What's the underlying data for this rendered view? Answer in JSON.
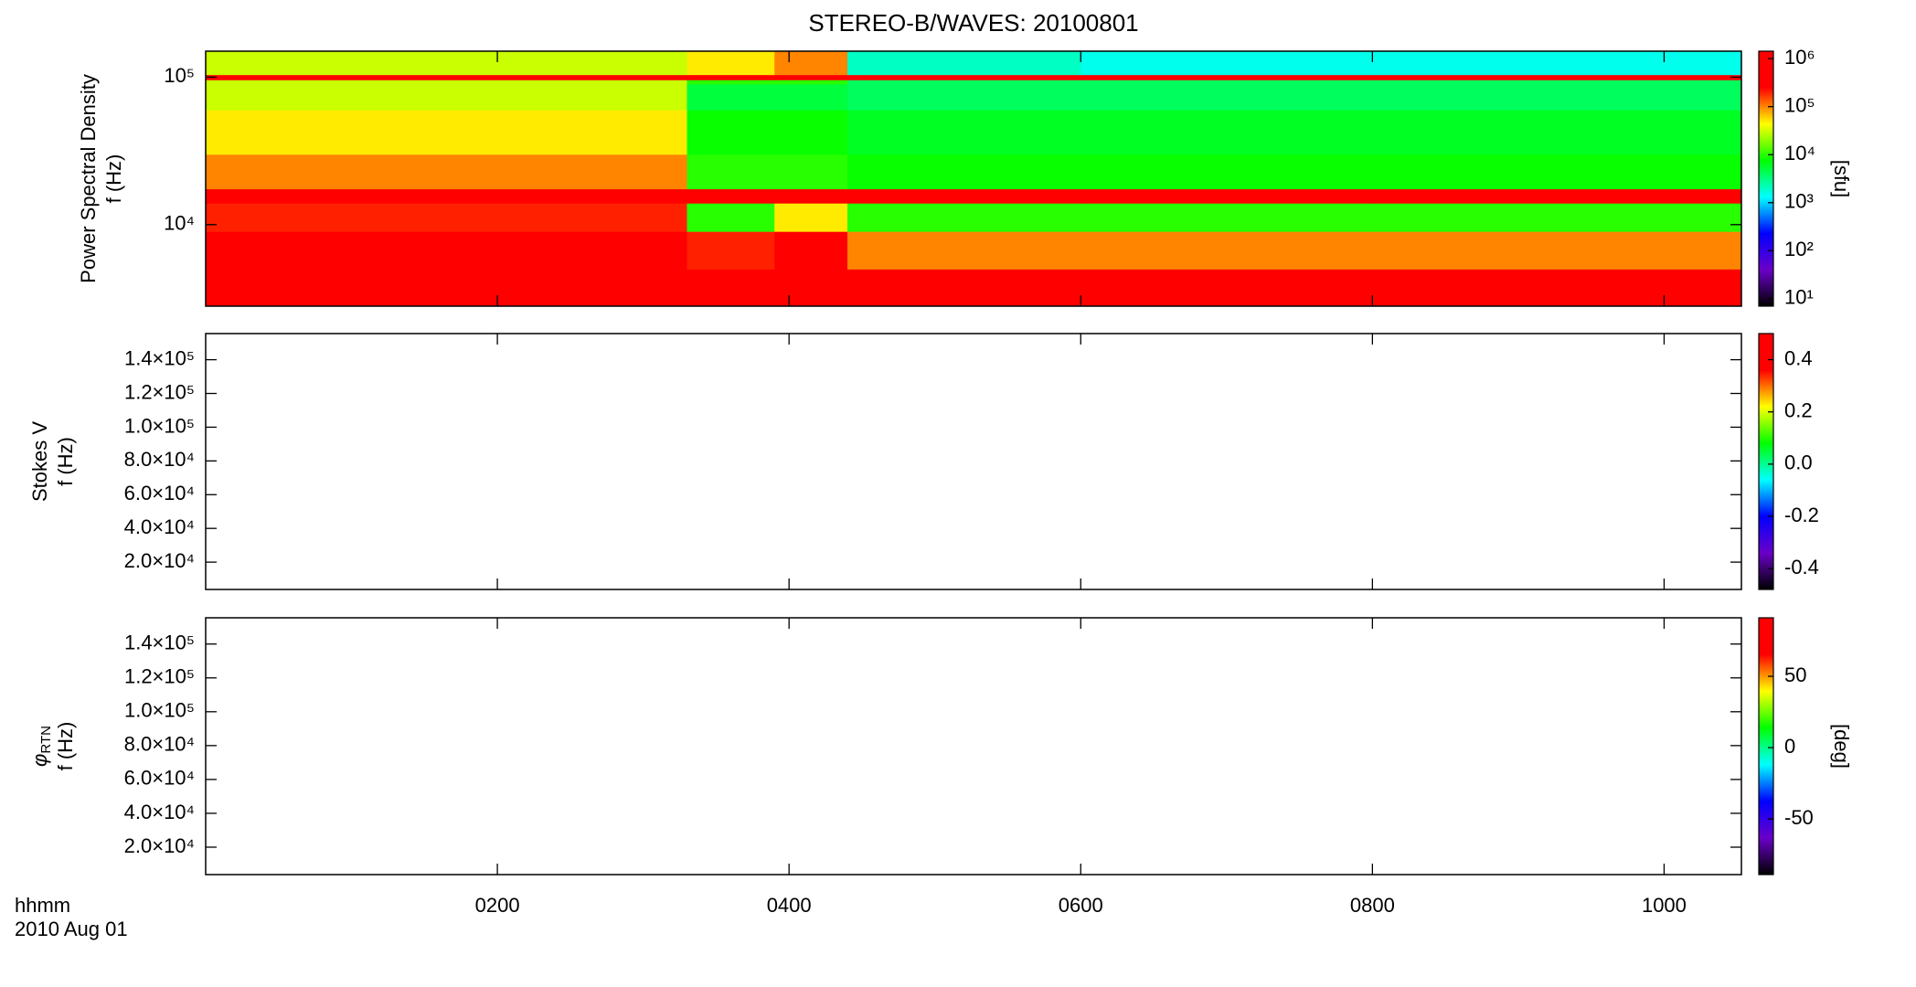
{
  "chart_data": [
    {
      "type": "heatmap",
      "title": "STEREO-B/WAVES: 20100801",
      "ylabel": [
        "Power Spectral Density",
        "f (Hz)"
      ],
      "ylog": true,
      "ylim": [
        2800,
        150000
      ],
      "yticks": [
        {
          "value": 10000,
          "label": "10⁴"
        },
        {
          "value": 100000,
          "label": "10⁵"
        }
      ],
      "x_edges": [
        0,
        3.3,
        3.9,
        4.4,
        6,
        8,
        10.53
      ],
      "y_edges": [
        2800,
        5000,
        9000,
        14000,
        17500,
        30000,
        60000,
        90000,
        96000,
        104000,
        150000
      ],
      "values": [
        [
          1000000,
          500000,
          1000000,
          300000,
          300000,
          300000
        ],
        [
          800000,
          200000,
          800000,
          100000,
          100000,
          100000
        ],
        [
          200000,
          10000,
          50000,
          10000,
          10000,
          10000
        ],
        [
          1000000,
          1000000,
          1000000,
          1000000,
          1000000,
          1000000
        ],
        [
          100000,
          10000,
          10000,
          8000,
          8000,
          8000
        ],
        [
          50000,
          8000,
          8000,
          6000,
          6000,
          6000
        ],
        [
          30000,
          5000,
          5000,
          4000,
          4000,
          4000
        ],
        [
          30000,
          10000,
          10000,
          4000,
          4000,
          4000
        ],
        [
          1000000,
          1000000,
          1000000,
          1000000,
          1000000,
          1000000
        ],
        [
          30000,
          50000,
          100000,
          2000,
          1500,
          1500
        ]
      ],
      "colorbar": {
        "log": true,
        "lim": [
          7,
          1430000
        ],
        "ticks": [
          {
            "value": 10,
            "label": "10¹"
          },
          {
            "value": 100,
            "label": "10²"
          },
          {
            "value": 1000,
            "label": "10³"
          },
          {
            "value": 10000,
            "label": "10⁴"
          },
          {
            "value": 100000,
            "label": "10⁵"
          },
          {
            "value": 1000000,
            "label": "10⁶"
          }
        ],
        "label": "[sfu]",
        "colormap": [
          "#000000",
          "#6a00c8",
          "#0000ff",
          "#00ffff",
          "#00ff00",
          "#ffff00",
          "#ff0000",
          "#ff0000"
        ]
      }
    },
    {
      "type": "heatmap",
      "ylabel": [
        "Stokes V",
        "f (Hz)"
      ],
      "ylim": [
        3800,
        155500
      ],
      "yticks": [
        {
          "value": 20000,
          "label": "2.0×10⁴"
        },
        {
          "value": 40000,
          "label": "4.0×10⁴"
        },
        {
          "value": 60000,
          "label": "6.0×10⁴"
        },
        {
          "value": 80000,
          "label": "8.0×10⁴"
        },
        {
          "value": 100000,
          "label": "1.0×10⁵"
        },
        {
          "value": 120000,
          "label": "1.2×10⁵"
        },
        {
          "value": 140000,
          "label": "1.4×10⁵"
        }
      ],
      "colorbar": {
        "lim": [
          -0.48,
          0.5
        ],
        "ticks": [
          0.4,
          0.2,
          {
            "value": 0,
            "label": "0.0"
          },
          -0.2,
          -0.4
        ],
        "colormap": [
          "#000000",
          "#6a00c8",
          "#0000ff",
          "#00ffff",
          "#00ff00",
          "#ffff00",
          "#ff0000",
          "#ff0000"
        ]
      }
    },
    {
      "type": "heatmap",
      "ylabel": [
        {
          "text": "φ",
          "sub": "RTN"
        },
        "f (Hz)"
      ],
      "ylim": [
        3800,
        155500
      ],
      "yticks": [
        {
          "value": 20000,
          "label": "2.0×10⁴"
        },
        {
          "value": 40000,
          "label": "4.0×10⁴"
        },
        {
          "value": 60000,
          "label": "6.0×10⁴"
        },
        {
          "value": 80000,
          "label": "8.0×10⁴"
        },
        {
          "value": 100000,
          "label": "1.0×10⁵"
        },
        {
          "value": 120000,
          "label": "1.2×10⁵"
        },
        {
          "value": 140000,
          "label": "1.4×10⁵"
        }
      ],
      "xlim": [
        0,
        10.53
      ],
      "xticks": [
        {
          "value": 2,
          "label": "0200"
        },
        {
          "value": 4,
          "label": "0400"
        },
        {
          "value": 6,
          "label": "0600"
        },
        {
          "value": 8,
          "label": "0800"
        },
        {
          "value": 10,
          "label": "1000"
        }
      ],
      "xlabel": "hhmm",
      "date": "2010 Aug 01",
      "colorbar": {
        "lim": [
          -89,
          91
        ],
        "ticks": [
          50,
          0,
          -50
        ],
        "label": "[deg]",
        "colormap": [
          "#000000",
          "#6a00c8",
          "#0000ff",
          "#00ffff",
          "#00ff00",
          "#ffff00",
          "#ff0000",
          "#ff0000"
        ]
      }
    }
  ]
}
